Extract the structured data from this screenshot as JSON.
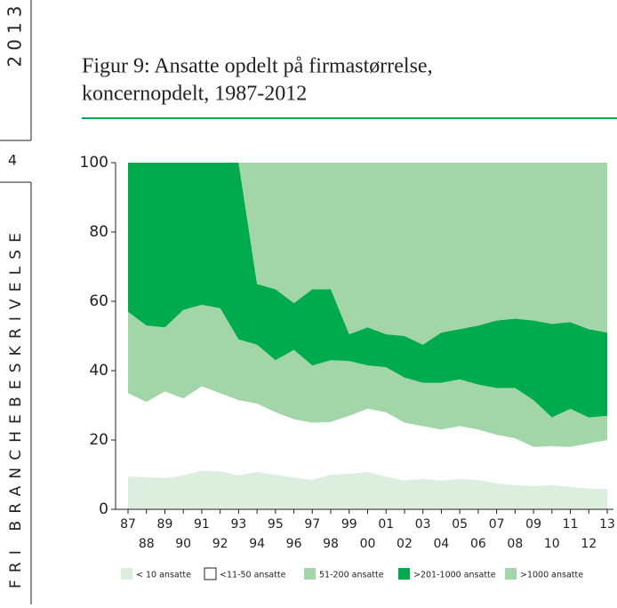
{
  "sidebar": {
    "year": "2013",
    "page": "4",
    "label": "FRI BRANCHEBESKRIVELSE"
  },
  "chart_data": {
    "type": "stacked_area",
    "title": [
      "Figur 9: Ansatte opdelt på firmastørrelse,",
      "koncernopdelt, 1987-2012"
    ],
    "categories": [
      "87",
      "88",
      "89",
      "90",
      "91",
      "92",
      "93",
      "94",
      "95",
      "96",
      "97",
      "98",
      "99",
      "00",
      "01",
      "02",
      "03",
      "04",
      "05",
      "06",
      "07",
      "08",
      "09",
      "10",
      "11",
      "12",
      "13"
    ],
    "ylim": [
      0,
      100
    ],
    "yticks": [
      0,
      20,
      40,
      60,
      80,
      100
    ],
    "series": [
      {
        "name": "< 10 ansatte",
        "color": "#dcefdf",
        "values": [
          9.5,
          9.3,
          9,
          9.8,
          11.2,
          11,
          9.8,
          10.8,
          10,
          9.2,
          8.5,
          10,
          10.3,
          10.8,
          9.5,
          8.3,
          8.8,
          8.3,
          8.8,
          8.5,
          7.5,
          7,
          6.8,
          7,
          6.5,
          6,
          5.8
        ]
      },
      {
        "name": "<11-50 ansatte",
        "color": "#ffffff",
        "values": [
          24,
          21.7,
          25,
          22.2,
          24.3,
          22.5,
          21.7,
          19.7,
          18,
          16.8,
          16.5,
          15.2,
          16.7,
          18.2,
          18.5,
          16.7,
          15.2,
          14.7,
          15.2,
          14.5,
          14,
          13.5,
          11.2,
          11.2,
          11.5,
          13,
          14.2
        ]
      },
      {
        "name": "51-200 ansatte",
        "color": "#a2d5a8",
        "values": [
          23.5,
          22,
          18.5,
          25.5,
          23.5,
          24.5,
          17.5,
          17,
          15,
          20,
          16.5,
          17.8,
          15.8,
          12.5,
          13,
          13,
          12.5,
          13.5,
          13.5,
          13,
          13.5,
          14.5,
          13.5,
          8.3,
          11,
          7.5,
          7
        ]
      },
      {
        "name": ">201-1000 ansatte",
        "color": "#00ab4e",
        "values": [
          43,
          47,
          47.5,
          42.5,
          41,
          42,
          51,
          17.5,
          20.5,
          13.5,
          22,
          20.5,
          7.7,
          11,
          9.5,
          12,
          11,
          14.5,
          14.5,
          17,
          19.5,
          20,
          23,
          27,
          25,
          25.5,
          24
        ]
      },
      {
        "name": ">1000 ansatte",
        "color": "#a2d5a8",
        "values": [
          0,
          0,
          0,
          0,
          0,
          0,
          0,
          35,
          36.5,
          40.5,
          36.5,
          36.5,
          49.5,
          47.5,
          49.5,
          50,
          52.5,
          49,
          48,
          47,
          45.5,
          45,
          45.5,
          46.5,
          46,
          48,
          49
        ]
      }
    ]
  }
}
